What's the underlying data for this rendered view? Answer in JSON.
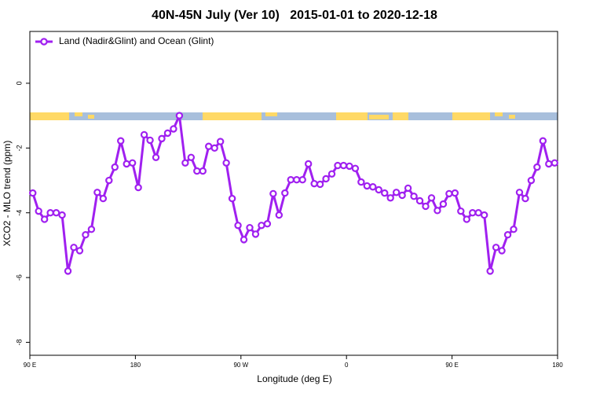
{
  "chart_data": {
    "type": "line",
    "title": "40N-45N July (Ver 10)   2015-01-01 to 2020-12-18",
    "xlabel": "Longitude (deg E)",
    "ylabel": "XCO2 - MLO trend (ppm)",
    "x": [
      92.5,
      97.5,
      102.5,
      107.5,
      112.5,
      117.5,
      122.5,
      127.5,
      132.5,
      137.5,
      142.5,
      147.5,
      152.5,
      157.5,
      162.5,
      167.5,
      172.5,
      177.5,
      182.5,
      187.5,
      192.5,
      197.5,
      202.5,
      207.5,
      212.5,
      217.5,
      222.5,
      227.5,
      232.5,
      237.5,
      242.5,
      247.5,
      252.5,
      257.5,
      262.5,
      267.5,
      272.5,
      277.5,
      282.5,
      287.5,
      292.5,
      297.5,
      302.5,
      307.5,
      312.5,
      317.5,
      322.5,
      327.5,
      332.5,
      337.5,
      342.5,
      347.5,
      352.5,
      357.5,
      362.5,
      367.5,
      372.5,
      377.5,
      382.5,
      387.5,
      392.5,
      397.5,
      402.5,
      407.5,
      412.5,
      417.5,
      422.5,
      427.5,
      432.5,
      437.5,
      442.5,
      447.5,
      452.5,
      457.5,
      462.5,
      467.5,
      472.5,
      477.5,
      482.5,
      487.5,
      492.5,
      497.5,
      502.5,
      507.5,
      512.5,
      517.5,
      522.5,
      527.5,
      532.5,
      537.5
    ],
    "series": [
      {
        "name": "Land (Nadir&Glint) and Ocean (Glint)",
        "color": "#a020f0",
        "values": [
          -3.39,
          -3.95,
          -4.2,
          -4.0,
          -4.0,
          -4.07,
          -5.8,
          -5.07,
          -5.17,
          -4.68,
          -4.51,
          -3.37,
          -3.56,
          -3.0,
          -2.59,
          -1.78,
          -2.49,
          -2.46,
          -3.22,
          -1.59,
          -1.76,
          -2.29,
          -1.71,
          -1.54,
          -1.41,
          -1.0,
          -2.46,
          -2.29,
          -2.71,
          -2.71,
          -1.95,
          -2.0,
          -1.8,
          -2.46,
          -3.56,
          -4.39,
          -4.83,
          -4.46,
          -4.66,
          -4.39,
          -4.34,
          -3.41,
          -4.07,
          -3.39,
          -2.98,
          -2.98,
          -2.98,
          -2.49,
          -3.1,
          -3.12,
          -2.95,
          -2.8,
          -2.54,
          -2.54,
          -2.56,
          -2.63,
          -3.05,
          -3.17,
          -3.2,
          -3.29,
          -3.39,
          -3.54,
          -3.37,
          -3.46,
          -3.24,
          -3.49,
          -3.63,
          -3.8,
          -3.54,
          -3.93,
          -3.73,
          -3.41,
          -3.39,
          -3.95,
          -4.2,
          -4.0,
          -4.0,
          -4.07,
          -5.8,
          -5.07,
          -5.17,
          -4.68,
          -4.51,
          -3.37,
          -3.56,
          -3.0,
          -2.59,
          -1.78,
          -2.49,
          -2.46
        ]
      }
    ],
    "xlim": [
      90,
      540
    ],
    "xticks": [
      {
        "value": 90,
        "label": "90 E"
      },
      {
        "value": 180,
        "label": "180"
      },
      {
        "value": 270,
        "label": "90 W"
      },
      {
        "value": 360,
        "label": "0"
      },
      {
        "value": 450,
        "label": "90 E"
      },
      {
        "value": 540,
        "label": "180"
      }
    ],
    "ylim": [
      -8.4,
      1.6
    ],
    "yticks": [
      0,
      -2,
      -4,
      -6,
      -8
    ],
    "legend": "top-left"
  }
}
